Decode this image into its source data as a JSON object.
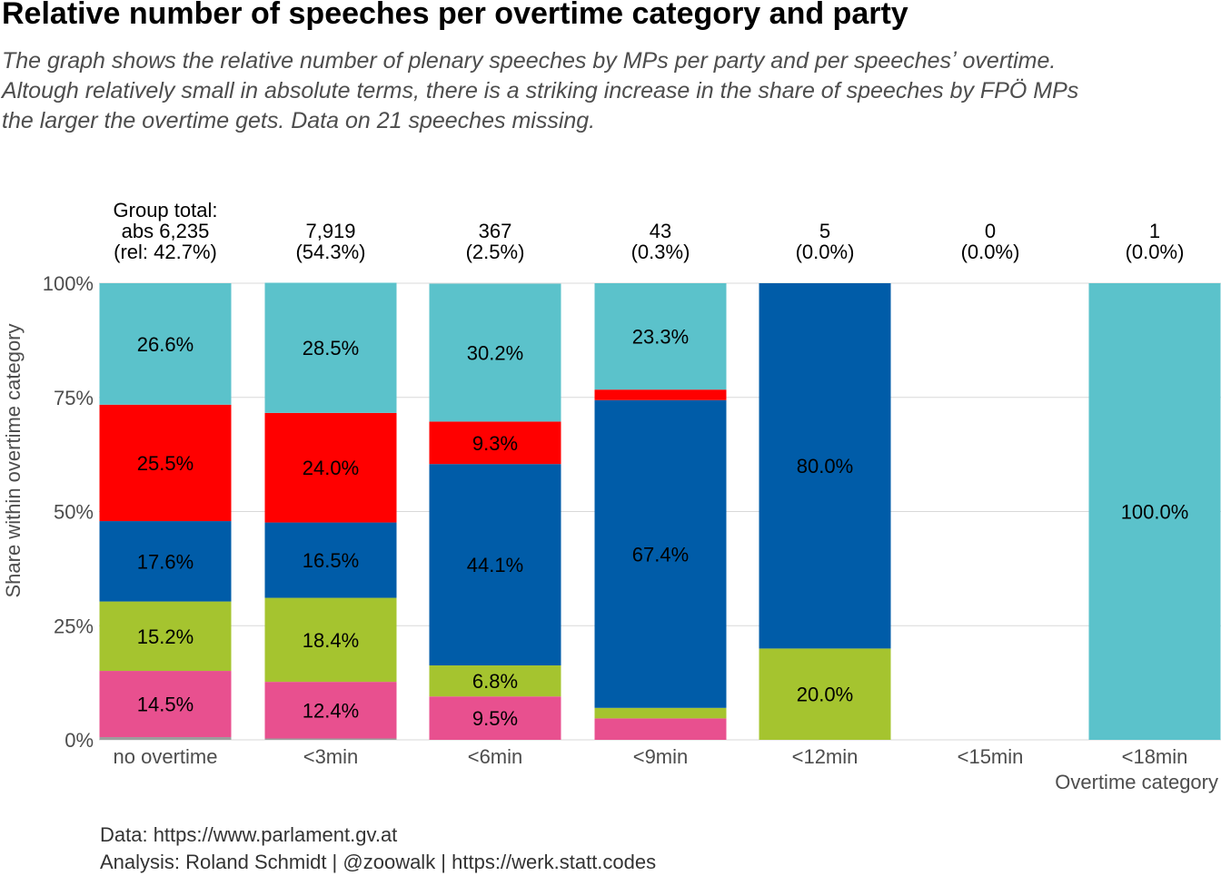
{
  "title": "Relative number of speeches per overtime category and party",
  "subtitle_lines": [
    "The graph shows the relative number of plenary speeches by MPs per party and per speechesʼ overtime.",
    "Altough relatively small in absolute terms, there is a striking increase in the share of speeches by FPÖ MPs",
    "the larger the overtime gets. Data on 21 speeches missing."
  ],
  "caption_lines": [
    "Data: https://www.parlament.gv.at",
    "Analysis: Roland Schmidt | @zoowalk | https://werk.statt.codes"
  ],
  "chart_data": {
    "type": "bar",
    "stacked": true,
    "ylabel": "Share within overtime category",
    "xlabel": "Overtime category",
    "ylim": [
      0,
      1
    ],
    "y_ticks": [
      "0%",
      "25%",
      "50%",
      "75%",
      "100%"
    ],
    "grid": true,
    "categories": [
      "no overtime",
      "<3min",
      "<6min",
      "<9min",
      "<12min",
      "<15min",
      "<18min"
    ],
    "group_totals": [
      {
        "lines": [
          "Group total:",
          "abs 6,235",
          "(rel: 42.7%)"
        ]
      },
      {
        "lines": [
          "7,919",
          "(54.3%)"
        ]
      },
      {
        "lines": [
          "367",
          "(2.5%)"
        ]
      },
      {
        "lines": [
          "43",
          "(0.3%)"
        ]
      },
      {
        "lines": [
          "5",
          "(0.0%)"
        ]
      },
      {
        "lines": [
          "0",
          "(0.0%)"
        ]
      },
      {
        "lines": [
          "1",
          "(0.0%)"
        ]
      }
    ],
    "series": [
      {
        "color": "#9e9e9e",
        "values": [
          0.006,
          0.003,
          0.0,
          0.0,
          0.0,
          0.0,
          0.0
        ],
        "labels": [
          "",
          "",
          "",
          "",
          "",
          "",
          ""
        ]
      },
      {
        "color": "#e8508f",
        "values": [
          0.145,
          0.124,
          0.095,
          0.047,
          0.0,
          0.0,
          0.0
        ],
        "labels": [
          "14.5%",
          "12.4%",
          "9.5%",
          "",
          "",
          "",
          ""
        ]
      },
      {
        "color": "#a5c42f",
        "values": [
          0.152,
          0.184,
          0.068,
          0.023,
          0.2,
          0.0,
          0.0
        ],
        "labels": [
          "15.2%",
          "18.4%",
          "6.8%",
          "",
          "20.0%",
          "",
          ""
        ]
      },
      {
        "color": "#005ca8",
        "values": [
          0.176,
          0.165,
          0.441,
          0.674,
          0.8,
          0.0,
          0.0
        ],
        "labels": [
          "17.6%",
          "16.5%",
          "44.1%",
          "67.4%",
          "80.0%",
          "",
          ""
        ]
      },
      {
        "color": "#ff0000",
        "values": [
          0.255,
          0.24,
          0.093,
          0.023,
          0.0,
          0.0,
          0.0
        ],
        "labels": [
          "25.5%",
          "24.0%",
          "9.3%",
          "",
          "",
          "",
          ""
        ]
      },
      {
        "color": "#5bc2cb",
        "values": [
          0.266,
          0.285,
          0.302,
          0.233,
          0.0,
          0.0,
          1.0
        ],
        "labels": [
          "26.6%",
          "28.5%",
          "30.2%",
          "23.3%",
          "",
          "",
          "100.0%"
        ]
      }
    ]
  }
}
